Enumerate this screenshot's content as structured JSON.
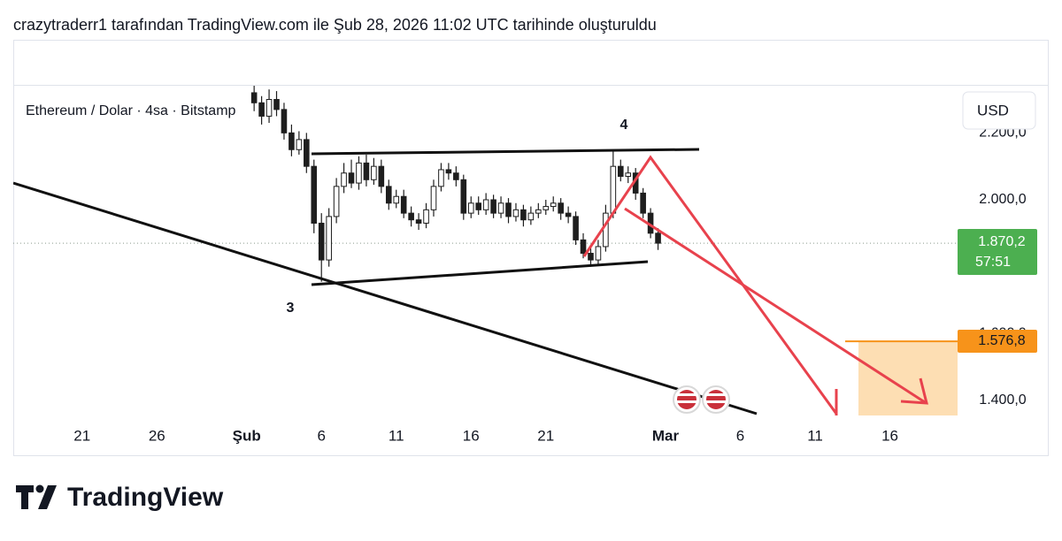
{
  "header": "crazytraderr1 tarafından TradingView.com ile Şub 28, 2026 11:02 UTC tarihinde oluşturuldu",
  "chart_data": {
    "type": "candlestick",
    "title": "Ethereum / Dolar · 4sa · Bitstamp",
    "currency": "USD",
    "color": "#1e1e1e",
    "x": [
      32.5,
      33,
      33.5,
      34,
      34.5,
      35,
      35.5,
      36,
      36.5,
      37,
      37.5,
      38,
      38.5,
      39,
      39.5,
      40,
      40.5,
      41,
      41.5,
      42,
      42.5,
      43,
      43.5,
      44,
      44.5,
      45,
      45.5,
      46,
      46.5,
      47,
      47.5,
      48,
      48.5,
      49,
      49.5,
      50,
      50.5,
      51,
      51.5,
      52,
      52.5,
      53,
      53.5,
      54,
      54.5,
      55,
      55.5,
      56,
      56.5,
      57,
      57.5,
      58,
      58.5,
      59,
      59.5
    ],
    "open": [
      2320,
      2290,
      2250,
      2300,
      2270,
      2200,
      2150,
      2180,
      2100,
      1930,
      1820,
      1950,
      2040,
      2080,
      2050,
      2110,
      2060,
      2100,
      2040,
      1990,
      2010,
      1960,
      1940,
      1930,
      1970,
      2040,
      2090,
      2080,
      2060,
      1960,
      1990,
      1970,
      2000,
      1960,
      1990,
      1950,
      1970,
      1940,
      1960,
      1970,
      1980,
      1990,
      1960,
      1950,
      1880,
      1840,
      1820,
      1860,
      1960,
      2100,
      2070,
      2080,
      2020,
      1960,
      1900
    ],
    "high": [
      2345,
      2310,
      2330,
      2325,
      2290,
      2225,
      2205,
      2200,
      2120,
      1960,
      1975,
      2065,
      2110,
      2120,
      2130,
      2135,
      2125,
      2120,
      2060,
      2030,
      2030,
      1980,
      1960,
      1990,
      2060,
      2110,
      2110,
      2100,
      2075,
      2010,
      2010,
      2020,
      2015,
      2010,
      2005,
      1990,
      1985,
      1980,
      1990,
      2000,
      2010,
      2005,
      1980,
      1965,
      1900,
      1860,
      1880,
      1985,
      2150,
      2120,
      2100,
      2095,
      2035,
      1975,
      1915
    ],
    "low": [
      2265,
      2225,
      2230,
      2250,
      2180,
      2130,
      2135,
      2080,
      1900,
      1755,
      1800,
      1930,
      2020,
      2035,
      2030,
      2040,
      2045,
      2020,
      1970,
      1975,
      1945,
      1920,
      1910,
      1915,
      1950,
      2025,
      2060,
      2040,
      1940,
      1945,
      1955,
      1955,
      1945,
      1945,
      1930,
      1935,
      1920,
      1925,
      1945,
      1955,
      1965,
      1940,
      1930,
      1865,
      1825,
      1800,
      1805,
      1845,
      1945,
      2055,
      2050,
      2000,
      1945,
      1885,
      1850
    ],
    "close": [
      2290,
      2250,
      2300,
      2270,
      2200,
      2150,
      2180,
      2100,
      1930,
      1820,
      1950,
      2040,
      2080,
      2050,
      2110,
      2060,
      2100,
      2040,
      1990,
      2010,
      1960,
      1940,
      1930,
      1970,
      2040,
      2090,
      2080,
      2060,
      1960,
      1990,
      1970,
      2000,
      1960,
      1990,
      1950,
      1970,
      1940,
      1960,
      1970,
      1980,
      1990,
      1960,
      1950,
      1880,
      1840,
      1820,
      1860,
      1960,
      2100,
      2070,
      2080,
      2020,
      1960,
      1900,
      1870.2
    ],
    "xlim": [
      16.4,
      79.7
    ],
    "xticks": [
      {
        "value": 21,
        "label": "21"
      },
      {
        "value": 26,
        "label": "26"
      },
      {
        "value": 32,
        "label": "Şub"
      },
      {
        "value": 37,
        "label": "6"
      },
      {
        "value": 42,
        "label": "11"
      },
      {
        "value": 47,
        "label": "16"
      },
      {
        "value": 52,
        "label": "21"
      },
      {
        "value": 60,
        "label": "Mar"
      },
      {
        "value": 65,
        "label": "6"
      },
      {
        "value": 70,
        "label": "11"
      },
      {
        "value": 75,
        "label": "16"
      }
    ],
    "ylim": [
      1355,
      2341
    ],
    "yticks": [
      {
        "value": 1400,
        "label": "1.400,0"
      },
      {
        "value": 1600,
        "label": "1.600,0"
      },
      {
        "value": 2000,
        "label": "2.000,0"
      },
      {
        "value": 2200,
        "label": "2.200,0"
      }
    ],
    "last_price": {
      "value": 1870.2,
      "label": "1.870,2"
    },
    "countdown": "57:51",
    "target_price": {
      "value": 1576.8,
      "label": "1.576,8"
    },
    "annotations": [
      "3",
      "4"
    ]
  },
  "footer": "TradingView"
}
